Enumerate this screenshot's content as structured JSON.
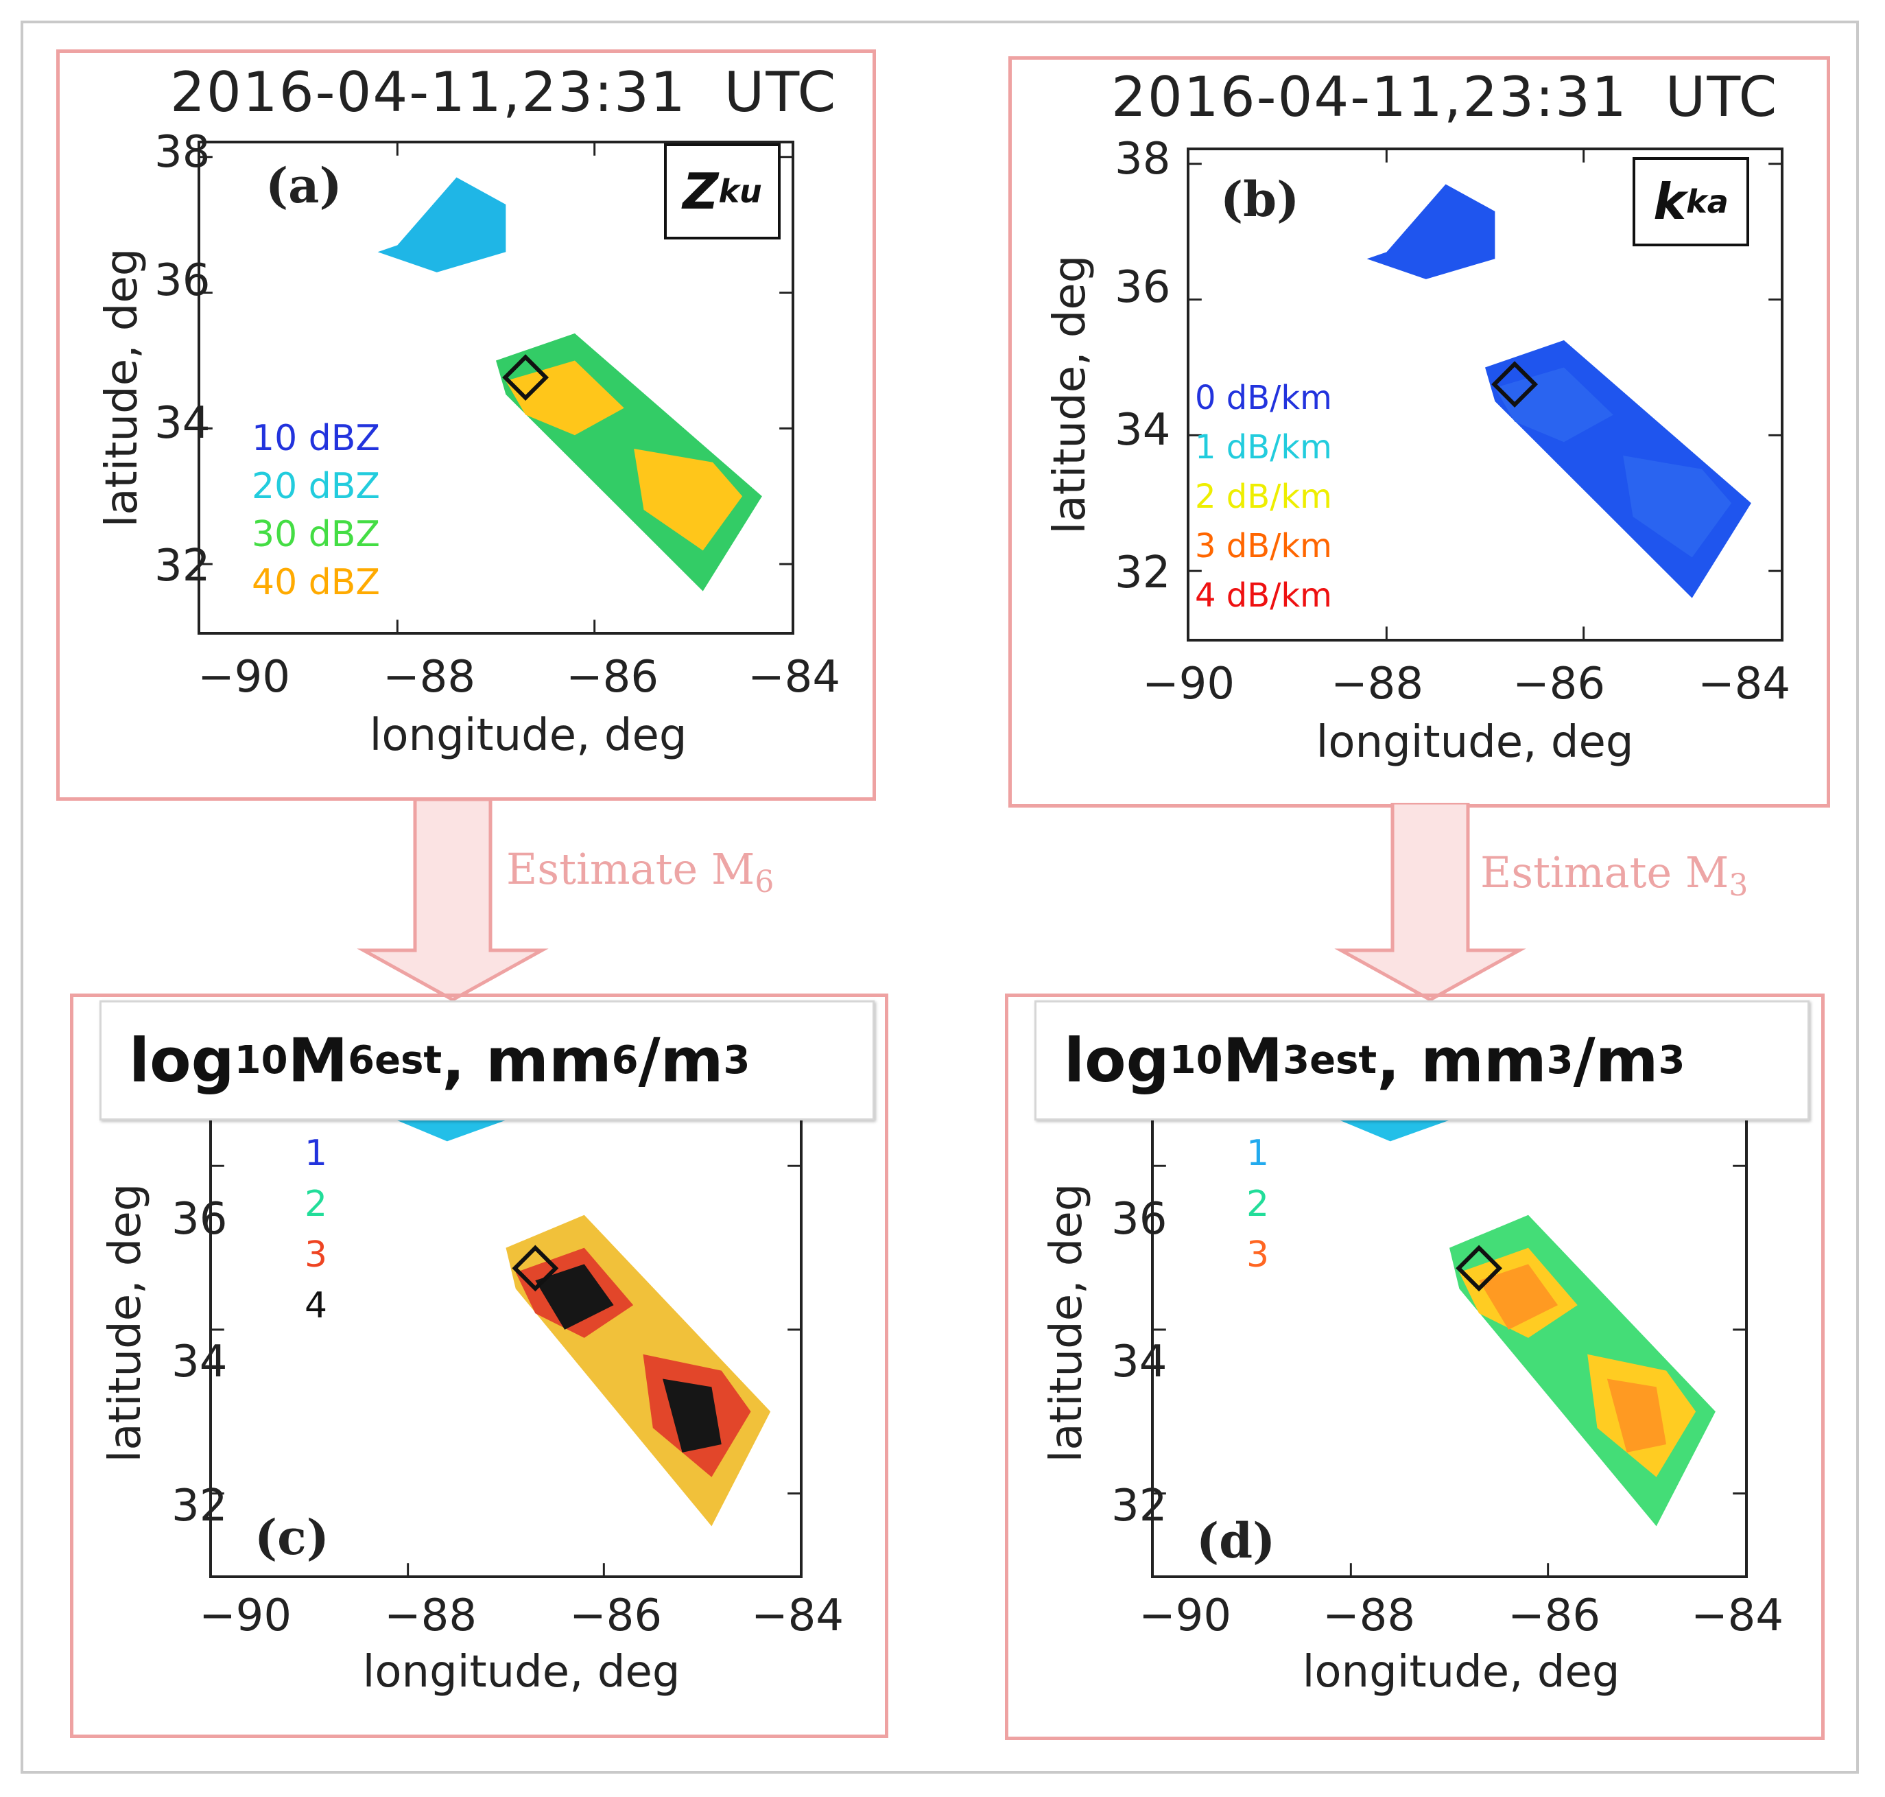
{
  "figure": {
    "timestamp": "2016-04-11,23:31  UTC",
    "x_axis_label": "longitude, deg",
    "y_axis_label": "latitude, deg",
    "x_ticks": [
      "−90",
      "−88",
      "−86",
      "−84"
    ],
    "y_ticks": [
      "32",
      "34",
      "36",
      "38"
    ],
    "y_ticks_lower": [
      "32",
      "34",
      "36"
    ],
    "arrow_color": "#eea2a2"
  },
  "panel_a": {
    "label": "(a)",
    "quantity_main": "Z",
    "quantity_sub": "ku",
    "legend": [
      {
        "text": "10  dBZ",
        "color": "#2233dd"
      },
      {
        "text": "20  dBZ",
        "color": "#22ccdd"
      },
      {
        "text": "30  dBZ",
        "color": "#44dd44"
      },
      {
        "text": "40  dBZ",
        "color": "#ffaa00"
      }
    ]
  },
  "panel_b": {
    "label": "(b)",
    "quantity_main": "k",
    "quantity_sub": "ka",
    "legend": [
      {
        "text": "0  dB/km",
        "color": "#2233dd"
      },
      {
        "text": "1  dB/km",
        "color": "#22ccdd"
      },
      {
        "text": "2  dB/km",
        "color": "#eeee00"
      },
      {
        "text": "3  dB/km",
        "color": "#ff6600"
      },
      {
        "text": "4  dB/km",
        "color": "#ee1111"
      }
    ]
  },
  "panel_c": {
    "label": "(c)",
    "title_pre": "log",
    "title_sub": "10",
    "title_m": " M",
    "title_msub": "6",
    "title_est": " est",
    "title_unit": ", mm",
    "title_unit_sup": "6",
    "title_unit_tail": "/m",
    "title_unit_tail_sup": "3",
    "legend": [
      {
        "text": "1",
        "color": "#2233dd"
      },
      {
        "text": "2",
        "color": "#22dd99"
      },
      {
        "text": "3",
        "color": "#ee4422"
      },
      {
        "text": "4",
        "color": "#111111"
      }
    ]
  },
  "panel_d": {
    "label": "(d)",
    "title_pre": "log",
    "title_sub": "10",
    "title_m": " M",
    "title_msub": "3",
    "title_est": " est",
    "title_unit": ", mm",
    "title_unit_sup": "3",
    "title_unit_tail": "/m",
    "title_unit_tail_sup": "3",
    "legend": [
      {
        "text": "1",
        "color": "#22aaee"
      },
      {
        "text": "2",
        "color": "#22dd99"
      },
      {
        "text": "3",
        "color": "#ff6622"
      }
    ]
  },
  "arrows": {
    "left_label": "Estimate M",
    "left_sub": "6",
    "right_label": "Estimate M",
    "right_sub": "3"
  },
  "map_data": {
    "lon_range": [
      -90,
      -84
    ],
    "lat_range_top": [
      31.0,
      38.2
    ],
    "lat_range_bottom": [
      31.0,
      37.3
    ],
    "marker_lon": -86.7,
    "marker_lat": 34.75,
    "north_region": [
      [
        -88.0,
        36.7
      ],
      [
        -87.4,
        37.7
      ],
      [
        -86.9,
        37.3
      ],
      [
        -86.9,
        36.6
      ],
      [
        -87.6,
        36.3
      ],
      [
        -88.2,
        36.6
      ]
    ],
    "main_swath": [
      [
        -87.0,
        35.0
      ],
      [
        -86.2,
        35.4
      ],
      [
        -84.3,
        33.0
      ],
      [
        -84.9,
        31.6
      ],
      [
        -86.9,
        34.5
      ]
    ]
  }
}
